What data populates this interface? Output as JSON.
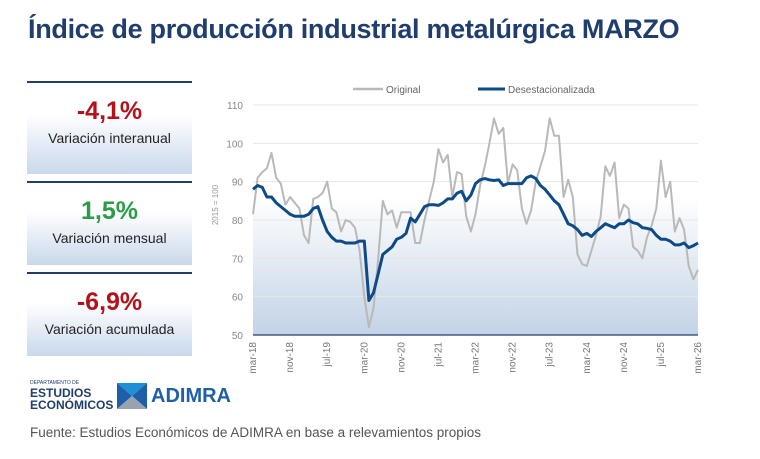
{
  "title": "Índice de producción industrial metalúrgica MARZO",
  "cards": [
    {
      "value": "-4,1%",
      "label": "Variación interanual",
      "tone": "negative"
    },
    {
      "value": "1,5%",
      "label": "Variación mensual",
      "tone": "positive"
    },
    {
      "value": "-6,9%",
      "label": "Variación acumulada",
      "tone": "negative"
    }
  ],
  "colors": {
    "title": "#1f3e6e",
    "negative": "#b3121b",
    "positive": "#2a9d48",
    "original": "#b9b9b9",
    "desestacionalizada": "#0e4a86"
  },
  "logos": {
    "dept_small": "DEPARTAMENTO DE",
    "dept_line1": "ESTUDIOS",
    "dept_line2": "ECONÓMICOS",
    "adimra": "ADIMRA"
  },
  "footer": "Fuente: Estudios Económicos de ADIMRA en base a relevamientos propios",
  "chart_data": {
    "type": "line",
    "ylabel": "2015 = 100",
    "ylim": [
      50,
      110
    ],
    "yticks": [
      50,
      60,
      70,
      80,
      90,
      100,
      110
    ],
    "x_start": "mar-18",
    "x_end": "mar-26",
    "frequency": "monthly",
    "xtick_labels": [
      "mar-18",
      "nov-18",
      "jul-19",
      "mar-20",
      "nov-20",
      "jul-21",
      "mar-22",
      "nov-22",
      "jul-23",
      "mar-24",
      "nov-24",
      "jul-25",
      "mar-26"
    ],
    "legend_position": "top",
    "grid": true,
    "series": [
      {
        "name": "Original",
        "values": [
          81.5,
          91,
          92.5,
          93.5,
          97.5,
          91,
          89.5,
          84,
          86,
          84.5,
          83,
          76,
          74,
          85.5,
          86,
          87,
          90,
          83,
          82,
          77,
          80,
          79.5,
          78,
          72,
          60,
          52,
          57,
          70,
          85,
          81.5,
          82.5,
          78,
          82,
          82,
          82,
          74,
          74,
          80,
          85,
          90,
          98.5,
          95,
          97,
          86,
          92.5,
          92,
          81,
          77,
          81.5,
          89,
          94,
          100,
          106.5,
          102.5,
          104,
          89.5,
          94.5,
          93,
          83,
          79,
          82.5,
          90,
          94,
          98,
          106.5,
          102,
          102,
          86,
          90.5,
          86,
          71,
          68.5,
          68,
          72,
          76,
          81,
          94,
          91.5,
          95,
          80.5,
          84,
          83,
          73,
          72,
          70,
          75.5,
          78.5,
          83,
          95.5,
          86,
          90,
          77,
          80.5,
          77.5,
          68,
          64.5,
          67
        ]
      },
      {
        "name": "Desestacionalizada",
        "values": [
          88,
          89,
          88.5,
          86,
          86,
          84.5,
          83.5,
          82.5,
          81.5,
          81,
          81,
          81,
          81.5,
          83,
          83.5,
          80,
          77,
          75.5,
          74.5,
          74.5,
          74,
          74,
          74,
          74.5,
          74.5,
          59,
          61,
          66,
          71,
          72,
          73,
          75,
          75.5,
          76.5,
          80.5,
          79.5,
          81.5,
          83.5,
          84,
          84,
          83.8,
          84.5,
          85.5,
          85.5,
          87,
          87.5,
          85,
          86.5,
          89.5,
          90.5,
          90.8,
          90.5,
          90.3,
          90.5,
          89,
          89.5,
          89.5,
          89.5,
          89.5,
          91,
          91.5,
          90.8,
          89,
          88,
          86.5,
          85,
          84,
          81.5,
          79,
          78.5,
          77.5,
          76,
          76.5,
          75.7,
          77,
          78,
          79,
          78.5,
          78,
          79,
          79,
          80,
          79.3,
          79,
          78,
          77.8,
          77.5,
          76,
          75,
          75,
          74.5,
          73.5,
          73.5,
          74,
          72.8,
          73.3,
          74
        ]
      }
    ]
  }
}
